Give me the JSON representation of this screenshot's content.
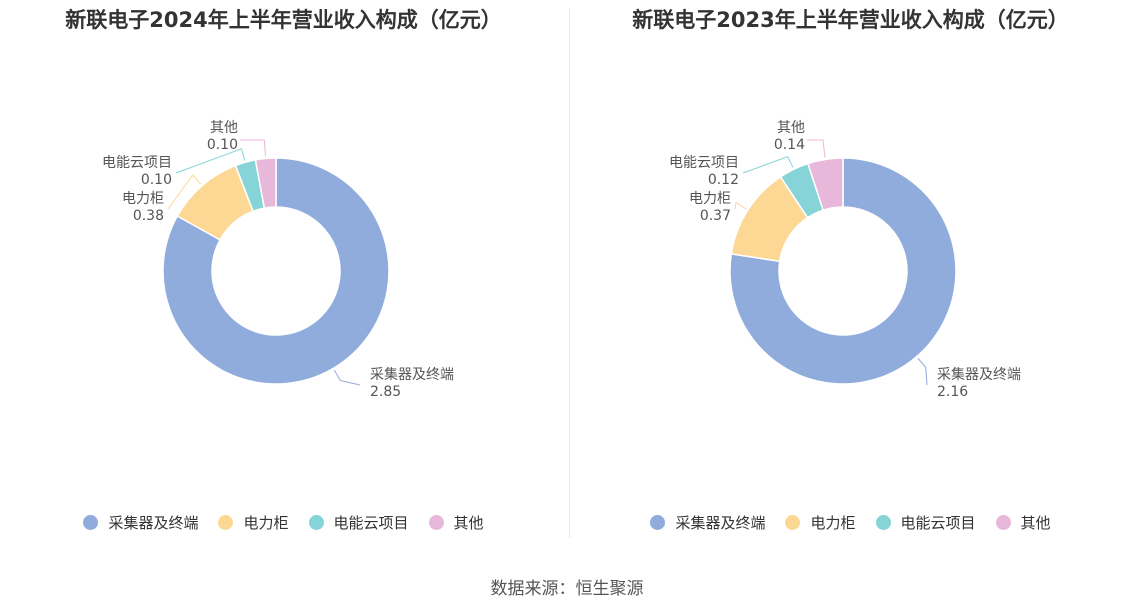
{
  "source": "数据来源：恒生聚源",
  "colors": [
    "#8facdc",
    "#fdd894",
    "#87d4d8",
    "#e8b8db"
  ],
  "chart_data": [
    {
      "type": "pie",
      "title": "新联电子2024年上半年营业收入构成（亿元）",
      "categories": [
        "采集器及终端",
        "电力柜",
        "电能云项目",
        "其他"
      ],
      "values": [
        2.85,
        0.38,
        0.1,
        0.1
      ],
      "value_labels": [
        "2.85",
        "0.38",
        "0.10",
        "0.10"
      ],
      "legend": "bottom"
    },
    {
      "type": "pie",
      "title": "新联电子2023年上半年营业收入构成（亿元）",
      "categories": [
        "采集器及终端",
        "电力柜",
        "电能云项目",
        "其他"
      ],
      "values": [
        2.16,
        0.37,
        0.12,
        0.14
      ],
      "value_labels": [
        "2.16",
        "0.37",
        "0.12",
        "0.14"
      ],
      "legend": "bottom"
    }
  ]
}
